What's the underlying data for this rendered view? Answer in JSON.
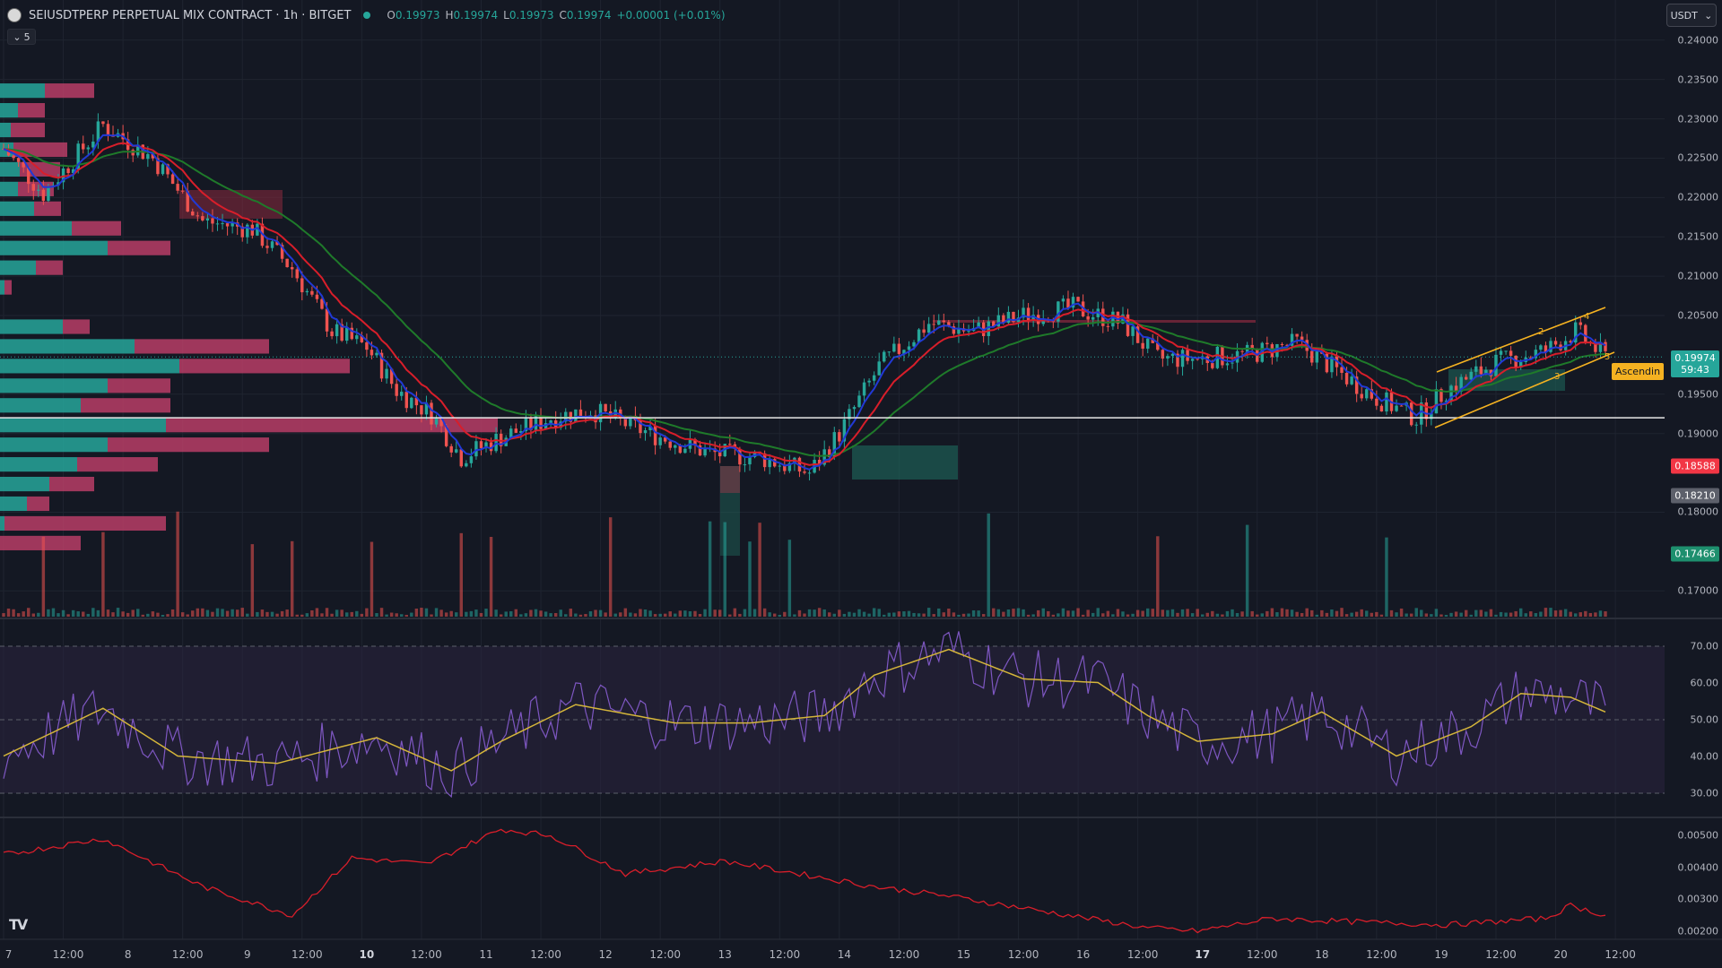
{
  "header": {
    "symbol_title": "SEIUSDTPERP PERPETUAL MIX CONTRACT · 1h · BITGET",
    "ohlc": [
      {
        "k": "O",
        "v": "0.19973"
      },
      {
        "k": "H",
        "v": "0.19974"
      },
      {
        "k": "L",
        "v": "0.19973"
      },
      {
        "k": "C",
        "v": "0.19974"
      }
    ],
    "change": "+0.00001 (+0.01%)",
    "collapse_count": "5",
    "currency": "USDT"
  },
  "price_axis": [
    "0.24000",
    "0.23500",
    "0.23000",
    "0.22500",
    "0.22000",
    "0.21500",
    "0.21000",
    "0.20500",
    "0.19500",
    "0.19000",
    "0.18000",
    "0.17000"
  ],
  "price_tags": [
    {
      "label": "0.19974",
      "sub": "59:43",
      "color": "#26a69a",
      "price": 0.19974
    },
    {
      "label": "0.18588",
      "color": "#f23645",
      "price": 0.18588
    },
    {
      "label": "0.18210",
      "color": "#5d606b",
      "price": 0.1821
    },
    {
      "label": "0.17466",
      "color": "#1e8f6e",
      "price": 0.17466
    }
  ],
  "pattern_label": "Ascendin",
  "pattern_points": [
    "2",
    "3",
    "4",
    "5"
  ],
  "rsi_axis": [
    "70.00",
    "60.00",
    "50.00",
    "40.00",
    "30.00"
  ],
  "osc_axis": [
    "0.00500",
    "0.00400",
    "0.00300",
    "0.00200"
  ],
  "time_axis": [
    {
      "t": "7",
      "bold": false
    },
    {
      "t": "12:00",
      "bold": false
    },
    {
      "t": "8",
      "bold": false
    },
    {
      "t": "12:00",
      "bold": false
    },
    {
      "t": "9",
      "bold": false
    },
    {
      "t": "12:00",
      "bold": false
    },
    {
      "t": "10",
      "bold": true
    },
    {
      "t": "12:00",
      "bold": false
    },
    {
      "t": "11",
      "bold": false
    },
    {
      "t": "12:00",
      "bold": false
    },
    {
      "t": "12",
      "bold": false
    },
    {
      "t": "12:00",
      "bold": false
    },
    {
      "t": "13",
      "bold": false
    },
    {
      "t": "12:00",
      "bold": false
    },
    {
      "t": "14",
      "bold": false
    },
    {
      "t": "12:00",
      "bold": false
    },
    {
      "t": "15",
      "bold": false
    },
    {
      "t": "12:00",
      "bold": false
    },
    {
      "t": "16",
      "bold": false
    },
    {
      "t": "12:00",
      "bold": false
    },
    {
      "t": "17",
      "bold": true
    },
    {
      "t": "12:00",
      "bold": false
    },
    {
      "t": "18",
      "bold": false
    },
    {
      "t": "12:00",
      "bold": false
    },
    {
      "t": "19",
      "bold": false
    },
    {
      "t": "12:00",
      "bold": false
    },
    {
      "t": "20",
      "bold": false
    },
    {
      "t": "12:00",
      "bold": false
    }
  ],
  "logo_text": "TV",
  "colors": {
    "up": "#26a69a",
    "down": "#ef5350",
    "ema_fast": "#2139d6",
    "ema_mid": "#d81e2a",
    "ema_slow": "#1f7a2a",
    "rsi": "#7e57c2",
    "rsi_ma": "#d4b53a"
  },
  "chart_data": {
    "type": "candlestick",
    "price_key": [
      {
        "hour": 0,
        "price": 0.2262
      },
      {
        "hour": 8,
        "price": 0.2205
      },
      {
        "hour": 20,
        "price": 0.2292
      },
      {
        "hour": 30,
        "price": 0.225
      },
      {
        "hour": 40,
        "price": 0.217
      },
      {
        "hour": 50,
        "price": 0.216
      },
      {
        "hour": 58,
        "price": 0.211
      },
      {
        "hour": 66,
        "price": 0.203
      },
      {
        "hour": 73,
        "price": 0.201
      },
      {
        "hour": 79,
        "price": 0.1955
      },
      {
        "hour": 86,
        "price": 0.1925
      },
      {
        "hour": 92,
        "price": 0.187
      },
      {
        "hour": 100,
        "price": 0.1895
      },
      {
        "hour": 110,
        "price": 0.192
      },
      {
        "hour": 118,
        "price": 0.193
      },
      {
        "hour": 130,
        "price": 0.19
      },
      {
        "hour": 142,
        "price": 0.1875
      },
      {
        "hour": 152,
        "price": 0.187
      },
      {
        "hour": 162,
        "price": 0.185
      },
      {
        "hour": 168,
        "price": 0.19
      },
      {
        "hour": 176,
        "price": 0.1985
      },
      {
        "hour": 186,
        "price": 0.204
      },
      {
        "hour": 195,
        "price": 0.203
      },
      {
        "hour": 205,
        "price": 0.205
      },
      {
        "hour": 215,
        "price": 0.206
      },
      {
        "hour": 225,
        "price": 0.204
      },
      {
        "hour": 232,
        "price": 0.1995
      },
      {
        "hour": 240,
        "price": 0.1995
      },
      {
        "hour": 250,
        "price": 0.2
      },
      {
        "hour": 260,
        "price": 0.2015
      },
      {
        "hour": 268,
        "price": 0.198
      },
      {
        "hour": 276,
        "price": 0.1945
      },
      {
        "hour": 284,
        "price": 0.192
      },
      {
        "hour": 290,
        "price": 0.1955
      },
      {
        "hour": 300,
        "price": 0.199
      },
      {
        "hour": 310,
        "price": 0.2005
      },
      {
        "hour": 316,
        "price": 0.203
      },
      {
        "hour": 322,
        "price": 0.1997
      }
    ],
    "y_range": [
      0.1665,
      0.241
    ],
    "horizontal_line": 0.192,
    "rsi_range": [
      25,
      75
    ],
    "rsi_key": [
      {
        "hour": 0,
        "v": 40
      },
      {
        "hour": 20,
        "v": 53
      },
      {
        "hour": 35,
        "v": 40
      },
      {
        "hour": 55,
        "v": 38
      },
      {
        "hour": 75,
        "v": 45
      },
      {
        "hour": 90,
        "v": 36
      },
      {
        "hour": 100,
        "v": 44
      },
      {
        "hour": 115,
        "v": 54
      },
      {
        "hour": 135,
        "v": 49
      },
      {
        "hour": 150,
        "v": 49
      },
      {
        "hour": 165,
        "v": 51
      },
      {
        "hour": 175,
        "v": 62
      },
      {
        "hour": 190,
        "v": 69
      },
      {
        "hour": 205,
        "v": 61
      },
      {
        "hour": 220,
        "v": 60
      },
      {
        "hour": 230,
        "v": 51
      },
      {
        "hour": 240,
        "v": 44
      },
      {
        "hour": 255,
        "v": 46
      },
      {
        "hour": 265,
        "v": 52
      },
      {
        "hour": 280,
        "v": 40
      },
      {
        "hour": 295,
        "v": 48
      },
      {
        "hour": 305,
        "v": 57
      },
      {
        "hour": 315,
        "v": 56
      },
      {
        "hour": 322,
        "v": 52
      }
    ],
    "osc_range": [
      0.0018,
      0.0054
    ],
    "osc_key": [
      {
        "hour": 0,
        "v": 0.0044
      },
      {
        "hour": 20,
        "v": 0.0049
      },
      {
        "hour": 40,
        "v": 0.0034
      },
      {
        "hour": 58,
        "v": 0.0025
      },
      {
        "hour": 70,
        "v": 0.0043
      },
      {
        "hour": 85,
        "v": 0.0041
      },
      {
        "hour": 100,
        "v": 0.0052
      },
      {
        "hour": 110,
        "v": 0.005
      },
      {
        "hour": 125,
        "v": 0.0038
      },
      {
        "hour": 145,
        "v": 0.0042
      },
      {
        "hour": 160,
        "v": 0.0038
      },
      {
        "hour": 175,
        "v": 0.0034
      },
      {
        "hour": 190,
        "v": 0.0031
      },
      {
        "hour": 210,
        "v": 0.0026
      },
      {
        "hour": 230,
        "v": 0.0021
      },
      {
        "hour": 240,
        "v": 0.002
      },
      {
        "hour": 255,
        "v": 0.0024
      },
      {
        "hour": 270,
        "v": 0.0023
      },
      {
        "hour": 290,
        "v": 0.0022
      },
      {
        "hour": 310,
        "v": 0.0024
      },
      {
        "hour": 315,
        "v": 0.0028
      },
      {
        "hour": 322,
        "v": 0.0025
      }
    ]
  }
}
